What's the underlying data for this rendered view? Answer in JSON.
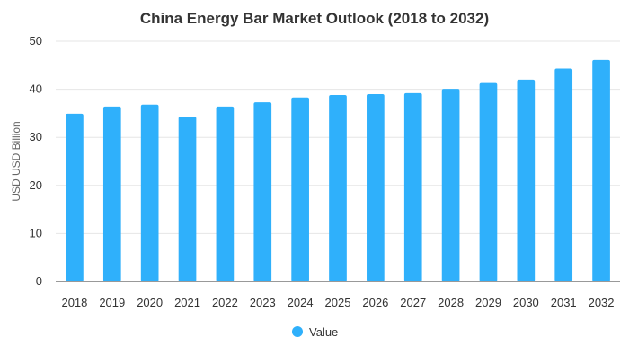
{
  "chart_data": {
    "type": "bar",
    "title": "China Energy Bar Market Outlook (2018 to 2032)",
    "xlabel": "",
    "ylabel": "USD USD Billion",
    "categories": [
      "2018",
      "2019",
      "2020",
      "2021",
      "2022",
      "2023",
      "2024",
      "2025",
      "2026",
      "2027",
      "2028",
      "2029",
      "2030",
      "2031",
      "2032"
    ],
    "series": [
      {
        "name": "Value",
        "color": "#2fb0fb",
        "values": [
          34.9,
          36.4,
          36.8,
          34.3,
          36.4,
          37.3,
          38.3,
          38.8,
          39.0,
          39.2,
          40.1,
          41.3,
          42.0,
          44.3,
          46.1
        ]
      }
    ],
    "ylim": [
      0,
      50
    ],
    "yticks": [
      0,
      10,
      20,
      30,
      40,
      50
    ],
    "grid": true,
    "legend": "bottom-center"
  }
}
